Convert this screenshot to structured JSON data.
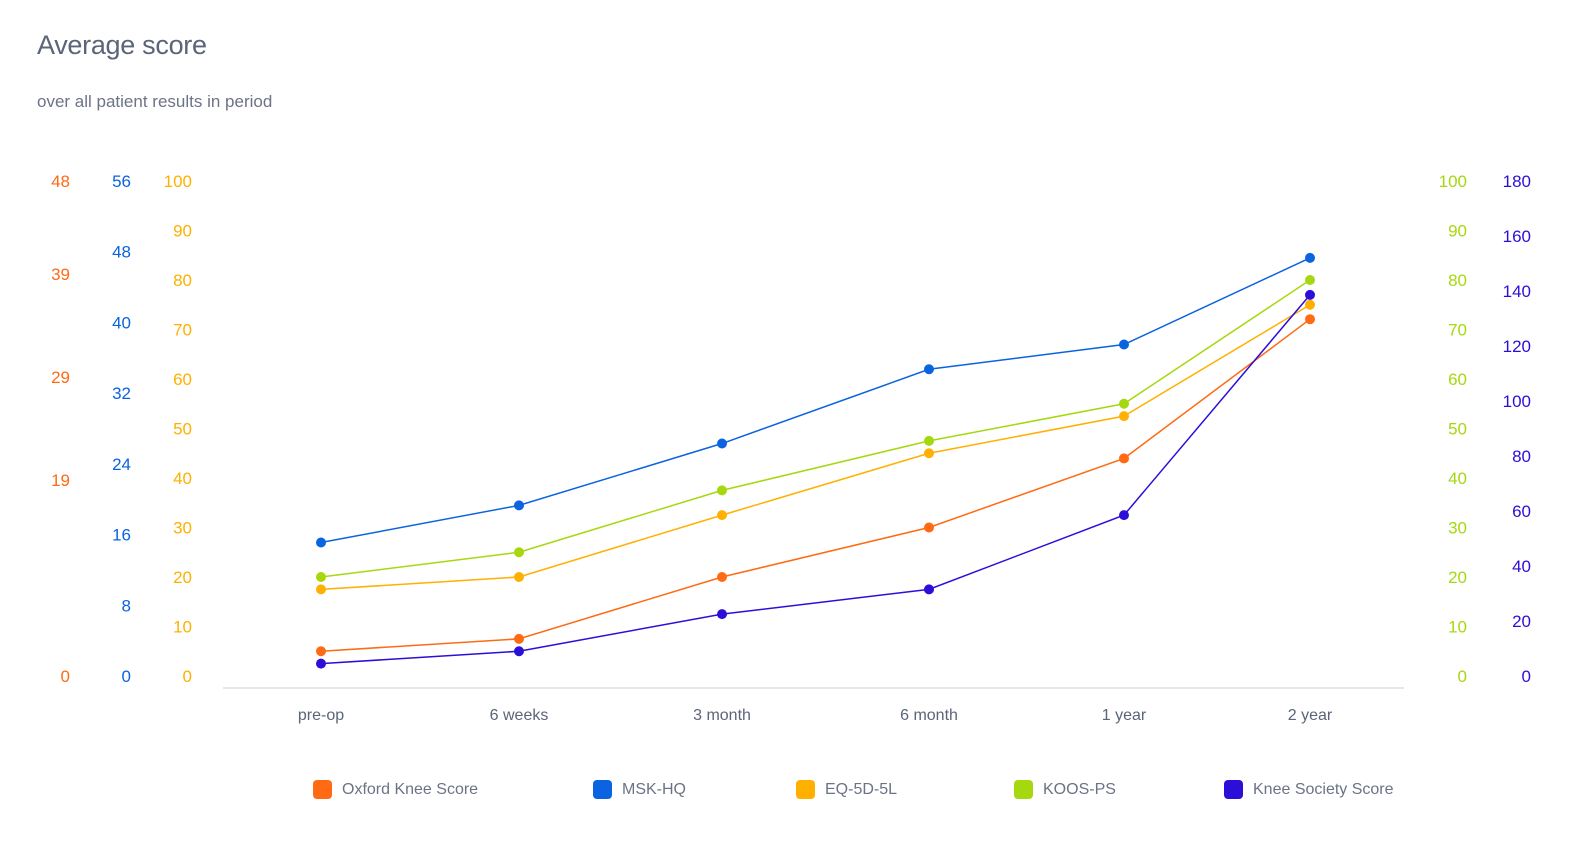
{
  "header": {
    "title": "Average score",
    "subtitle": "over all patient results in period"
  },
  "chart_data": {
    "type": "line",
    "title": "Average score",
    "subtitle": "over all patient results in period",
    "categories": [
      "pre-op",
      "6 weeks",
      "3 month",
      "6 month",
      "1 year",
      "2 year"
    ],
    "grid": false,
    "legend_position": "bottom",
    "axes": [
      {
        "id": "oks",
        "side": "left",
        "ticks": [
          0,
          19,
          29,
          39,
          48
        ],
        "range": [
          0,
          48
        ],
        "color": "#ff6a13"
      },
      {
        "id": "msk",
        "side": "left",
        "ticks": [
          0,
          8,
          16,
          24,
          32,
          40,
          48,
          56
        ],
        "range": [
          0,
          56
        ],
        "color": "#0a63e0"
      },
      {
        "id": "eq",
        "side": "left",
        "ticks": [
          0,
          10,
          20,
          30,
          40,
          50,
          60,
          70,
          80,
          90,
          100
        ],
        "range": [
          0,
          100
        ],
        "color": "#ffb000"
      },
      {
        "id": "koos",
        "side": "right",
        "ticks": [
          0,
          10,
          20,
          30,
          40,
          50,
          60,
          70,
          80,
          90,
          100
        ],
        "range": [
          0,
          100
        ],
        "color": "#a6d80f"
      },
      {
        "id": "kss",
        "side": "right",
        "ticks": [
          0,
          20,
          40,
          60,
          80,
          100,
          120,
          140,
          160,
          180
        ],
        "range": [
          0,
          180
        ],
        "color": "#2b0fd8"
      }
    ],
    "series": [
      {
        "name": "Oxford Knee Score",
        "axis": "oks",
        "color": "#ff6a13",
        "values": [
          2.4,
          3.6,
          9.6,
          14.4,
          21.1,
          34.6
        ]
      },
      {
        "name": "MSK-HQ",
        "axis": "msk",
        "color": "#0a63e0",
        "values": [
          15.1,
          19.3,
          26.3,
          34.7,
          37.5,
          47.3
        ]
      },
      {
        "name": "EQ-5D-5L",
        "axis": "eq",
        "color": "#ffb000",
        "values": [
          17.5,
          20,
          32.5,
          45,
          52.5,
          75
        ]
      },
      {
        "name": "KOOS-PS",
        "axis": "koos",
        "color": "#a6d80f",
        "values": [
          20,
          25,
          37.5,
          47.5,
          55,
          80
        ]
      },
      {
        "name": "Knee Society Score",
        "axis": "kss",
        "color": "#2b0fd8",
        "values": [
          4.5,
          9,
          22.5,
          31.5,
          58.5,
          138.6
        ]
      }
    ]
  }
}
